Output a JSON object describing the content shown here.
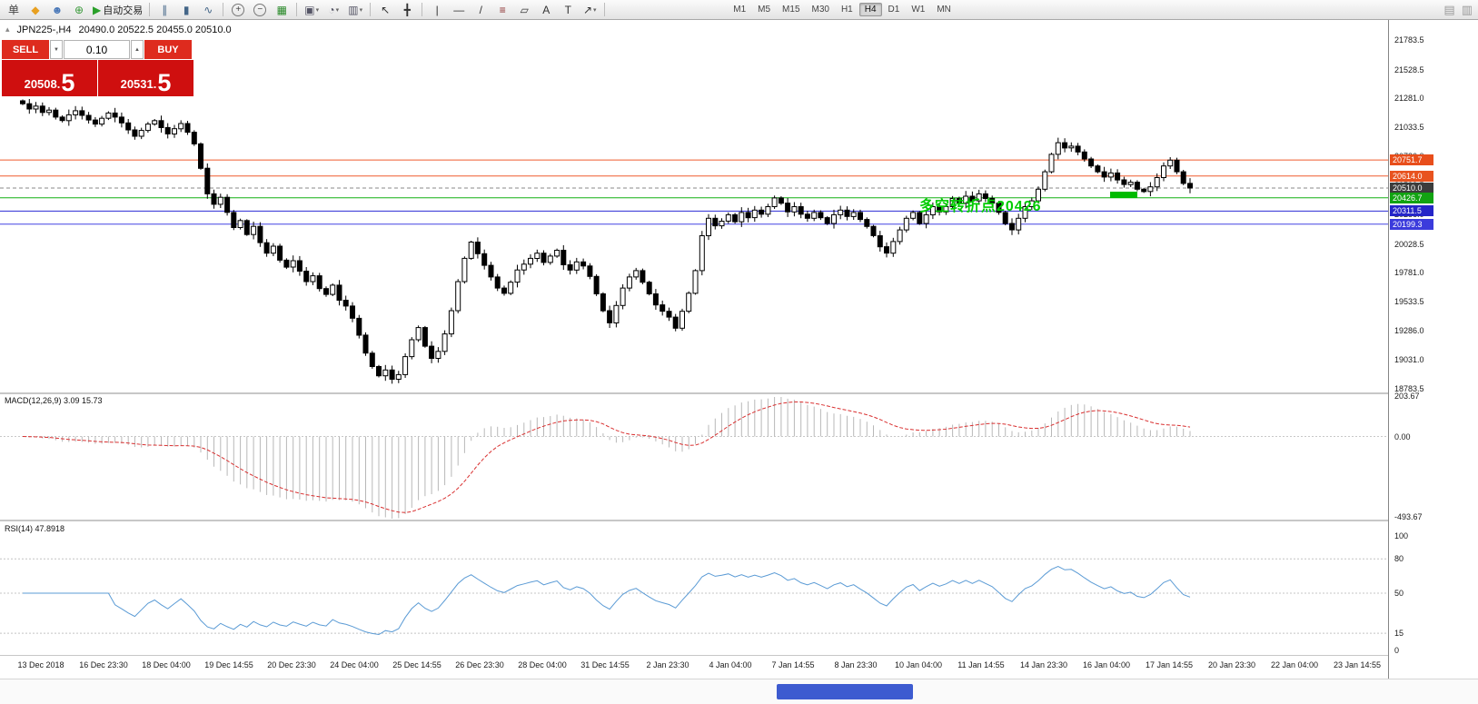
{
  "toolbar": {
    "groups": [
      {
        "items": [
          {
            "name": "new-order-icon",
            "glyph": "单",
            "color": "#444"
          },
          {
            "name": "market-icon",
            "glyph": "◆",
            "color": "#e8a020"
          },
          {
            "name": "profile-icon",
            "glyph": "☻",
            "color": "#4a78b8"
          },
          {
            "name": "community-icon",
            "glyph": "⊕",
            "color": "#3a9a3a"
          },
          {
            "name": "autotrading-icon",
            "glyph": "▶",
            "color": "#2aa02a",
            "text": "自动交易"
          }
        ]
      },
      {
        "items": [
          {
            "name": "bar-chart-icon",
            "glyph": "∥",
            "color": "#446688"
          },
          {
            "name": "candlestick-chart-icon",
            "glyph": "▮",
            "color": "#446688"
          },
          {
            "name": "line-chart-icon",
            "glyph": "∿",
            "color": "#446688"
          }
        ]
      },
      {
        "items": [
          {
            "name": "zoom-in-icon",
            "glyph": "+",
            "color": "#444",
            "round": true
          },
          {
            "name": "zoom-out-icon",
            "glyph": "−",
            "color": "#444",
            "round": true
          },
          {
            "name": "tile-windows-icon",
            "glyph": "▦",
            "color": "#2a8a2a"
          }
        ]
      },
      {
        "items": [
          {
            "name": "new-chart-icon",
            "glyph": "▣",
            "color": "#556",
            "caret": true
          },
          {
            "name": "profiles-icon",
            "glyph": "◔",
            "color": "#556",
            "caret": true
          },
          {
            "name": "templates-icon",
            "glyph": "▥",
            "color": "#556",
            "caret": true
          }
        ]
      },
      {
        "items": [
          {
            "name": "cursor-icon",
            "glyph": "↖",
            "color": "#333"
          },
          {
            "name": "crosshair-icon",
            "glyph": "╋",
            "color": "#333"
          }
        ]
      },
      {
        "items": [
          {
            "name": "vertical-line-icon",
            "glyph": "|",
            "color": "#333"
          },
          {
            "name": "horizontal-line-icon",
            "glyph": "—",
            "color": "#333"
          },
          {
            "name": "trendline-icon",
            "glyph": "/",
            "color": "#333"
          },
          {
            "name": "fibonacci-icon",
            "glyph": "≡",
            "color": "#8a2a2a"
          },
          {
            "name": "shapes-icon",
            "glyph": "▱",
            "color": "#333"
          },
          {
            "name": "text-icon",
            "glyph": "A",
            "color": "#333"
          },
          {
            "name": "label-icon",
            "glyph": "T",
            "color": "#333"
          },
          {
            "name": "arrows-icon",
            "glyph": "↗",
            "color": "#333",
            "caret": true
          }
        ]
      },
      {
        "type": "timeframes",
        "items": [
          "M1",
          "M5",
          "M15",
          "M30",
          "H1",
          "H4",
          "D1",
          "W1",
          "MN"
        ]
      }
    ],
    "active_timeframe": "H4",
    "right_icons": [
      {
        "name": "print-icon",
        "glyph": "▤"
      },
      {
        "name": "window-icon",
        "glyph": "▥"
      }
    ]
  },
  "chart": {
    "symbol_line": {
      "collapse_glyph": "▴",
      "symbol": "JPN225-,H4",
      "ohlc": "20490.0 20522.5 20455.0 20510.0"
    },
    "trade_panel": {
      "sell_label": "SELL",
      "buy_label": "BUY",
      "volume": "0.10",
      "down_glyph": "▼",
      "up_glyph": "▲",
      "sell_price_main": "20508.",
      "sell_price_big": "5",
      "buy_price_main": "20531.",
      "buy_price_big": "5"
    },
    "annotation": {
      "text": "多空转折点20426",
      "color": "#00cc00"
    },
    "highlight_segment": {
      "price": 20455,
      "color": "#00bb00"
    },
    "price_levels": [
      {
        "value": 20751.7,
        "label": "20751.7",
        "line_color": "#ef5b2e",
        "label_bg": "#e84e1b",
        "dashed": false
      },
      {
        "value": 20614.0,
        "label": "20614.0",
        "line_color": "#ef5b2e",
        "label_bg": "#e8531f",
        "dashed": false
      },
      {
        "value": 20510.0,
        "label": "20510.0",
        "line_color": "#8a8a8a",
        "label_bg": "#3c3c3c",
        "dashed": true
      },
      {
        "value": 20426.7,
        "label": "20426.7",
        "line_color": "#14b014",
        "label_bg": "#12a312",
        "dashed": false
      },
      {
        "value": 20311.5,
        "label": "20311.5",
        "line_color": "#2c2cd4",
        "label_bg": "#2525c8",
        "dashed": false
      },
      {
        "value": 20199.3,
        "label": "20199.3",
        "line_color": "#4343e4",
        "label_bg": "#3b3bdc",
        "dashed": false
      }
    ],
    "axis_ticks": [
      "21783.5",
      "21528.5",
      "21281.0",
      "21033.5",
      "20786.0",
      "20533.5",
      "20286.0",
      "20028.5",
      "19781.0",
      "19533.5",
      "19286.0",
      "19031.0",
      "18783.5"
    ],
    "date_labels": [
      "13 Dec 2018",
      "16 Dec 23:30",
      "18 Dec 04:00",
      "19 Dec 14:55",
      "20 Dec 23:30",
      "24 Dec 04:00",
      "25 Dec 14:55",
      "26 Dec 23:30",
      "28 Dec 04:00",
      "31 Dec 14:55",
      "2 Jan 23:30",
      "4 Jan 04:00",
      "7 Jan 14:55",
      "8 Jan 23:30",
      "10 Jan 04:00",
      "11 Jan 14:55",
      "14 Jan 23:30",
      "16 Jan 04:00",
      "17 Jan 14:55",
      "20 Jan 23:30",
      "22 Jan 04:00",
      "23 Jan 14:55"
    ]
  },
  "macd": {
    "label_full": "MACD(12,26,9) 3.09 15.73",
    "axis": [
      "203.67",
      "0.00",
      "-493.67"
    ],
    "fast": 12,
    "slow": 26,
    "signal": 9,
    "histogram_color": "#b8b8b8",
    "signal_color": "#d93030"
  },
  "rsi": {
    "label_full": "RSI(14) 47.8918",
    "axis": [
      "100",
      "80",
      "50",
      "15",
      "0"
    ],
    "levels": [
      80,
      50,
      15
    ],
    "period": 14,
    "line_color": "#5b9bd5"
  },
  "chart_data": {
    "type": "candlestick",
    "symbol": "JPN225-",
    "timeframe": "H4",
    "title": "JPN225-,H4",
    "y_range": [
      18783.5,
      21783.5
    ],
    "levels": [
      20751.7,
      20614.0,
      20510.0,
      20426.7,
      20311.5,
      20199.3
    ],
    "indicators": [
      {
        "name": "MACD",
        "params": [
          12,
          26,
          9
        ],
        "values": [
          3.09,
          15.73
        ]
      },
      {
        "name": "RSI",
        "params": [
          14
        ],
        "value": 47.8918
      }
    ],
    "first_open": 21260,
    "candles_closes": [
      21235,
      21190,
      21215,
      21160,
      21180,
      21120,
      21090,
      21140,
      21175,
      21135,
      21095,
      21060,
      21110,
      21155,
      21120,
      21070,
      21010,
      20955,
      21005,
      21060,
      21090,
      21030,
      20975,
      21020,
      21065,
      20990,
      20890,
      20680,
      20460,
      20370,
      20430,
      20300,
      20170,
      20230,
      20110,
      20180,
      20040,
      19950,
      20010,
      19890,
      19830,
      19885,
      19795,
      19705,
      19755,
      19645,
      19595,
      19675,
      19545,
      19495,
      19390,
      19245,
      19090,
      18975,
      18895,
      18945,
      18865,
      18905,
      19060,
      19205,
      19310,
      19150,
      19045,
      19105,
      19255,
      19455,
      19705,
      19905,
      20045,
      19945,
      19845,
      19745,
      19650,
      19605,
      19700,
      19805,
      19855,
      19905,
      19950,
      19870,
      19925,
      19975,
      19850,
      19805,
      19875,
      19840,
      19750,
      19600,
      19455,
      19350,
      19500,
      19650,
      19745,
      19800,
      19700,
      19600,
      19505,
      19450,
      19400,
      19305,
      19450,
      19605,
      19800,
      20100,
      20250,
      20185,
      20225,
      20280,
      20220,
      20300,
      20255,
      20320,
      20285,
      20350,
      20425,
      20380,
      20305,
      20350,
      20285,
      20250,
      20300,
      20255,
      20205,
      20280,
      20320,
      20265,
      20300,
      20240,
      20180,
      20100,
      20005,
      19950,
      20050,
      20150,
      20250,
      20300,
      20205,
      20280,
      20350,
      20305,
      20350,
      20420,
      20380,
      20440,
      20400,
      20460,
      20420,
      20380,
      20300,
      20205,
      20150,
      20250,
      20350,
      20400,
      20500,
      20650,
      20800,
      20900,
      20855,
      20870,
      20820,
      20760,
      20700,
      20650,
      20605,
      20640,
      20580,
      20540,
      20560,
      20500,
      20480,
      20520,
      20600,
      20700,
      20750,
      20650,
      20550,
      20510
    ]
  }
}
